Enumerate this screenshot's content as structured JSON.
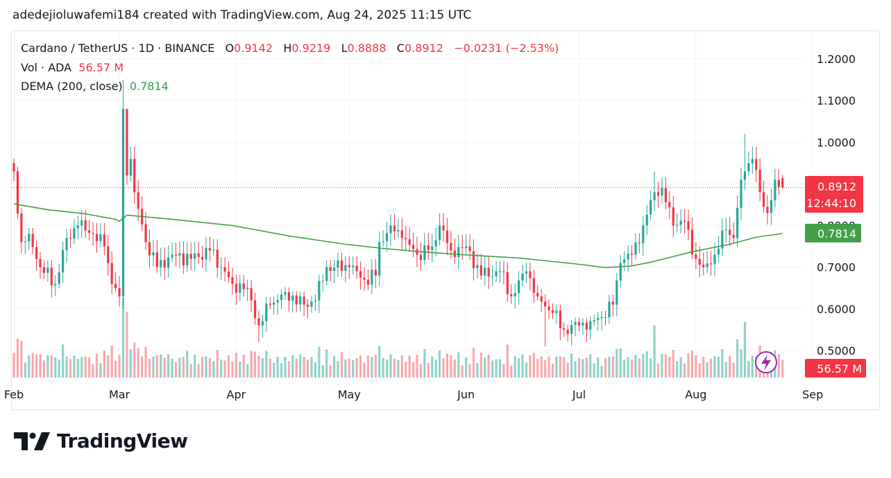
{
  "header": {
    "attribution": "adedejioluwafemi184 created with TradingView.com, Aug 24, 2025 11:15 UTC"
  },
  "legend": {
    "symbol": "Cardano / TetherUS · 1D · BINANCE",
    "o_label": "O",
    "o_value": "0.9142",
    "h_label": "H",
    "h_value": "0.9219",
    "l_label": "L",
    "l_value": "0.8888",
    "c_label": "C",
    "c_value": "0.8912",
    "change": "−0.0231 (−2.53%)",
    "vol_label": "Vol · ADA",
    "vol_value": "56.57 M",
    "dema_label": "DEMA (200, close)",
    "dema_value": "0.7814"
  },
  "price_tags": {
    "last_price": "0.8912",
    "countdown": "12:44:10",
    "dema": "0.7814",
    "volume": "56.57 M"
  },
  "footer": {
    "brand": "TradingView"
  },
  "colors": {
    "up": "#26a69a",
    "down": "#f23645",
    "up_volume": "#8fd1c9",
    "down_volume": "#f7a9ae",
    "dema": "#43a047",
    "grid": "#f0f3fa",
    "price_line": "#f23645"
  },
  "chart_data": {
    "type": "candlestick",
    "pair": "ADA/USDT",
    "interval": "1D",
    "exchange": "BINANCE",
    "y_axis": {
      "ticks": [
        "0.5000",
        "0.6000",
        "0.7000",
        "0.8000",
        "0.9000",
        "1.0000",
        "1.1000",
        "1.2000"
      ],
      "range": [
        0.435,
        1.265
      ]
    },
    "x_axis": {
      "ticks": [
        "Feb",
        "Mar",
        "Apr",
        "May",
        "Jun",
        "Jul",
        "Aug",
        "Sep"
      ],
      "start_date": "2025-02-01",
      "end_date": "2025-08-24"
    },
    "dema_points": [
      [
        "2025-02-01",
        0.852
      ],
      [
        "2025-02-10",
        0.838
      ],
      [
        "2025-02-20",
        0.828
      ],
      [
        "2025-02-28",
        0.815
      ],
      [
        "2025-03-01",
        0.81
      ],
      [
        "2025-03-03",
        0.825
      ],
      [
        "2025-03-15",
        0.815
      ],
      [
        "2025-03-31",
        0.8
      ],
      [
        "2025-04-15",
        0.775
      ],
      [
        "2025-04-30",
        0.755
      ],
      [
        "2025-05-10",
        0.745
      ],
      [
        "2025-05-20",
        0.737
      ],
      [
        "2025-05-31",
        0.73
      ],
      [
        "2025-06-15",
        0.722
      ],
      [
        "2025-06-30",
        0.708
      ],
      [
        "2025-07-08",
        0.699
      ],
      [
        "2025-07-15",
        0.703
      ],
      [
        "2025-07-20",
        0.712
      ],
      [
        "2025-07-31",
        0.737
      ],
      [
        "2025-08-10",
        0.755
      ],
      [
        "2025-08-17",
        0.772
      ],
      [
        "2025-08-24",
        0.781
      ]
    ],
    "anchor_closes": [
      [
        "2025-02-01",
        0.93
      ],
      [
        "2025-02-03",
        0.76
      ],
      [
        "2025-02-05",
        0.78
      ],
      [
        "2025-02-08",
        0.7
      ],
      [
        "2025-02-12",
        0.66
      ],
      [
        "2025-02-15",
        0.77
      ],
      [
        "2025-02-18",
        0.8
      ],
      [
        "2025-02-22",
        0.78
      ],
      [
        "2025-02-25",
        0.75
      ],
      [
        "2025-02-27",
        0.66
      ],
      [
        "2025-03-01",
        0.63
      ],
      [
        "2025-03-02",
        1.08
      ],
      [
        "2025-03-03",
        0.92
      ],
      [
        "2025-03-04",
        0.96
      ],
      [
        "2025-03-05",
        0.88
      ],
      [
        "2025-03-08",
        0.76
      ],
      [
        "2025-03-11",
        0.7
      ],
      [
        "2025-03-15",
        0.73
      ],
      [
        "2025-03-20",
        0.72
      ],
      [
        "2025-03-25",
        0.74
      ],
      [
        "2025-03-28",
        0.7
      ],
      [
        "2025-03-31",
        0.66
      ],
      [
        "2025-04-04",
        0.65
      ],
      [
        "2025-04-07",
        0.56
      ],
      [
        "2025-04-10",
        0.61
      ],
      [
        "2025-04-14",
        0.64
      ],
      [
        "2025-04-19",
        0.61
      ],
      [
        "2025-04-22",
        0.62
      ],
      [
        "2025-04-25",
        0.7
      ],
      [
        "2025-05-01",
        0.7
      ],
      [
        "2025-05-05",
        0.67
      ],
      [
        "2025-05-08",
        0.68
      ],
      [
        "2025-05-09",
        0.76
      ],
      [
        "2025-05-12",
        0.8
      ],
      [
        "2025-05-15",
        0.77
      ],
      [
        "2025-05-19",
        0.73
      ],
      [
        "2025-05-23",
        0.75
      ],
      [
        "2025-05-25",
        0.8
      ],
      [
        "2025-05-28",
        0.74
      ],
      [
        "2025-06-01",
        0.75
      ],
      [
        "2025-06-05",
        0.68
      ],
      [
        "2025-06-10",
        0.69
      ],
      [
        "2025-06-13",
        0.63
      ],
      [
        "2025-06-17",
        0.69
      ],
      [
        "2025-06-20",
        0.63
      ],
      [
        "2025-06-24",
        0.59
      ],
      [
        "2025-06-27",
        0.55
      ],
      [
        "2025-07-01",
        0.56
      ],
      [
        "2025-07-04",
        0.57
      ],
      [
        "2025-07-07",
        0.58
      ],
      [
        "2025-07-10",
        0.61
      ],
      [
        "2025-07-12",
        0.71
      ],
      [
        "2025-07-15",
        0.73
      ],
      [
        "2025-07-18",
        0.8
      ],
      [
        "2025-07-21",
        0.88
      ],
      [
        "2025-07-23",
        0.89
      ],
      [
        "2025-07-26",
        0.8
      ],
      [
        "2025-07-29",
        0.81
      ],
      [
        "2025-08-01",
        0.72
      ],
      [
        "2025-08-03",
        0.7
      ],
      [
        "2025-08-06",
        0.73
      ],
      [
        "2025-08-09",
        0.79
      ],
      [
        "2025-08-11",
        0.77
      ],
      [
        "2025-08-13",
        0.91
      ],
      [
        "2025-08-14",
        0.93
      ],
      [
        "2025-08-16",
        0.96
      ],
      [
        "2025-08-18",
        0.88
      ],
      [
        "2025-08-20",
        0.83
      ],
      [
        "2025-08-22",
        0.91
      ],
      [
        "2025-08-24",
        0.8912
      ]
    ],
    "spikes": [
      [
        "2025-03-02",
        1.15
      ],
      [
        "2025-03-03",
        1.07
      ],
      [
        "2025-08-14",
        1.02
      ],
      [
        "2025-07-21",
        0.93
      ]
    ],
    "lows": [
      [
        "2025-04-07",
        0.52
      ],
      [
        "2025-06-22",
        0.51
      ],
      [
        "2025-08-03",
        0.68
      ]
    ],
    "last": {
      "open": 0.9142,
      "high": 0.9219,
      "low": 0.8888,
      "close": 0.8912
    },
    "last_volume": "56.57 M",
    "last_dema": 0.7814
  }
}
